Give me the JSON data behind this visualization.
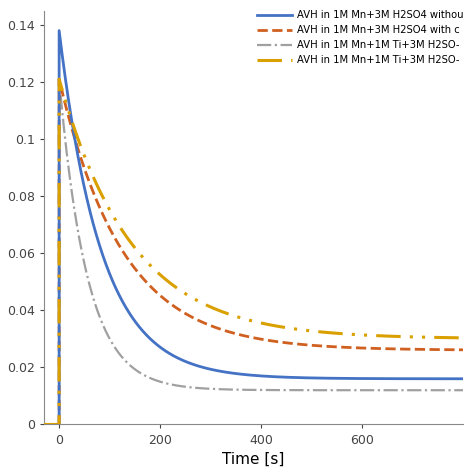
{
  "title": "",
  "xlabel": "Time [s]",
  "ylabel": "",
  "xlim": [
    -30,
    800
  ],
  "ylim": [
    0,
    0.145
  ],
  "yticks": [
    0,
    0.02,
    0.04,
    0.06,
    0.08,
    0.1,
    0.12,
    0.14
  ],
  "xticks": [
    0,
    200,
    400,
    600
  ],
  "legend": [
    "AVH in 1M Mn+3M H2SO4 withou",
    "AVH in 1M Mn+3M H2SO4 with c",
    "AVH in 1M Mn+1M Ti+3M H2SO-",
    "AVH in 1M Mn+1M Ti+3M H2SO-"
  ],
  "line_colors": [
    "#4472C4",
    "#D06020",
    "#A0A0A0",
    "#DAA000"
  ],
  "peaks": [
    0.138,
    0.121,
    0.121,
    0.121
  ],
  "decay_rates": [
    0.012,
    0.008,
    0.018,
    0.007
  ],
  "asymptotes": [
    0.016,
    0.026,
    0.012,
    0.03
  ],
  "background_color": "#FFFFFF"
}
